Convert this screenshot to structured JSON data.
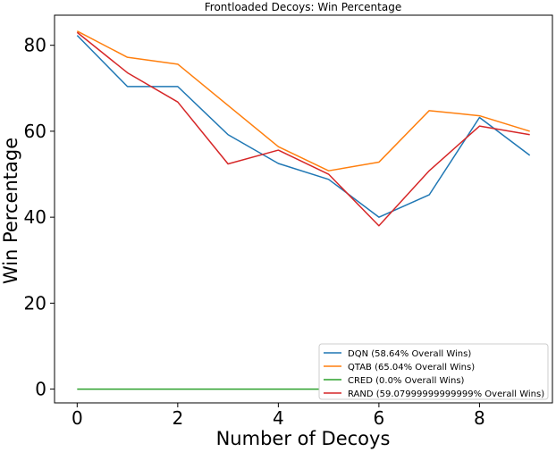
{
  "chart_data": {
    "type": "line",
    "title": "Frontloaded Decoys: Win Percentage",
    "xlabel": "Number of Decoys",
    "ylabel": "Win Percentage",
    "xlim": [
      -0.45,
      9.45
    ],
    "ylim": [
      -3.2,
      87.0
    ],
    "xticks": [
      0,
      2,
      4,
      6,
      8
    ],
    "yticks": [
      0,
      20,
      40,
      60,
      80
    ],
    "legend_position": "lower right",
    "x": [
      0,
      1,
      2,
      3,
      4,
      5,
      6,
      7,
      8,
      9
    ],
    "series": [
      {
        "name": "DQN (58.64% Overall Wins)",
        "color": "#1f77b4",
        "values": [
          82.3,
          70.4,
          70.4,
          59.2,
          52.5,
          48.8,
          40.0,
          45.2,
          63.2,
          54.4
        ]
      },
      {
        "name": "QTAB (65.04% Overall Wins)",
        "color": "#ff7f0e",
        "values": [
          83.3,
          77.2,
          75.6,
          66.0,
          56.4,
          50.8,
          52.8,
          64.8,
          63.6,
          60.0
        ]
      },
      {
        "name": "CRED (0.0% Overall Wins)",
        "color": "#2ca02c",
        "values": [
          0,
          0,
          0,
          0,
          0,
          0,
          0,
          0,
          0,
          0
        ]
      },
      {
        "name": "RAND (59.07999999999999% Overall Wins)",
        "color": "#d62728",
        "values": [
          83.0,
          73.6,
          66.8,
          52.4,
          55.6,
          50.0,
          38.0,
          50.8,
          61.2,
          59.2
        ]
      }
    ]
  }
}
